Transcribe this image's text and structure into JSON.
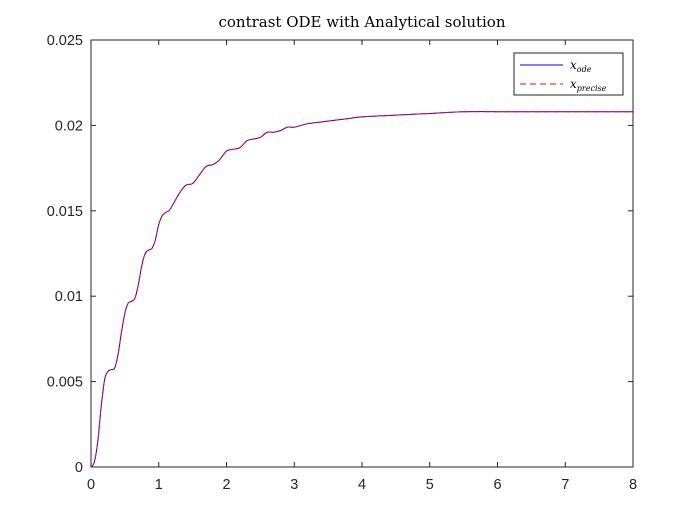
{
  "chart_data": {
    "type": "line",
    "title": "contrast ODE with Analytical solution",
    "xlabel": "",
    "ylabel": "",
    "xlim": [
      0,
      8
    ],
    "ylim": [
      0,
      0.025
    ],
    "xticks": [
      "0",
      "1",
      "2",
      "3",
      "4",
      "5",
      "6",
      "7",
      "8"
    ],
    "yticks": [
      "0",
      "0.005",
      "0.01",
      "0.015",
      "0.02",
      "0.025"
    ],
    "grid": false,
    "legend_position": "top-right",
    "series": [
      {
        "name": "x_ode",
        "legend_base": "x",
        "legend_sub": "ode",
        "color": "#0000ff",
        "style": "solid",
        "x": [
          0,
          0.05,
          0.1,
          0.15,
          0.2,
          0.25,
          0.3,
          0.35,
          0.4,
          0.45,
          0.5,
          0.55,
          0.6,
          0.65,
          0.7,
          0.75,
          0.8,
          0.85,
          0.9,
          0.95,
          1.0,
          1.05,
          1.1,
          1.15,
          1.2,
          1.3,
          1.4,
          1.5,
          1.6,
          1.7,
          1.8,
          1.9,
          2.0,
          2.1,
          2.2,
          2.3,
          2.4,
          2.5,
          2.6,
          2.7,
          2.8,
          2.9,
          3.0,
          3.2,
          3.4,
          3.6,
          3.8,
          4.0,
          4.5,
          5.0,
          5.5,
          6.0,
          6.5,
          7.0,
          7.5,
          8.0
        ],
        "values": [
          0,
          0.0003,
          0.0015,
          0.0035,
          0.0051,
          0.0056,
          0.0057,
          0.0058,
          0.0066,
          0.0079,
          0.009,
          0.0096,
          0.0097,
          0.0099,
          0.0107,
          0.0118,
          0.0125,
          0.0127,
          0.0128,
          0.0133,
          0.0142,
          0.0147,
          0.0149,
          0.015,
          0.0153,
          0.016,
          0.0165,
          0.0166,
          0.0171,
          0.0176,
          0.0177,
          0.018,
          0.0185,
          0.0186,
          0.0187,
          0.0191,
          0.0192,
          0.0193,
          0.0196,
          0.0196,
          0.0197,
          0.0199,
          0.0199,
          0.0201,
          0.0202,
          0.0203,
          0.0204,
          0.0205,
          0.0206,
          0.0207,
          0.0208,
          0.0208,
          0.0208,
          0.0208,
          0.0208,
          0.0208
        ]
      },
      {
        "name": "x_precise",
        "legend_base": "x",
        "legend_sub": "precise",
        "color": "#ff0000",
        "style": "dashed",
        "x": [
          0,
          0.05,
          0.1,
          0.15,
          0.2,
          0.25,
          0.3,
          0.35,
          0.4,
          0.45,
          0.5,
          0.55,
          0.6,
          0.65,
          0.7,
          0.75,
          0.8,
          0.85,
          0.9,
          0.95,
          1.0,
          1.05,
          1.1,
          1.15,
          1.2,
          1.3,
          1.4,
          1.5,
          1.6,
          1.7,
          1.8,
          1.9,
          2.0,
          2.1,
          2.2,
          2.3,
          2.4,
          2.5,
          2.6,
          2.7,
          2.8,
          2.9,
          3.0,
          3.2,
          3.4,
          3.6,
          3.8,
          4.0,
          4.5,
          5.0,
          5.5,
          6.0,
          6.5,
          7.0,
          7.5,
          8.0
        ],
        "values": [
          0,
          0.0003,
          0.0015,
          0.0035,
          0.0051,
          0.0056,
          0.0057,
          0.0058,
          0.0066,
          0.0079,
          0.009,
          0.0096,
          0.0097,
          0.0099,
          0.0107,
          0.0118,
          0.0125,
          0.0127,
          0.0128,
          0.0133,
          0.0142,
          0.0147,
          0.0149,
          0.015,
          0.0153,
          0.016,
          0.0165,
          0.0166,
          0.0171,
          0.0176,
          0.0177,
          0.018,
          0.0185,
          0.0186,
          0.0187,
          0.0191,
          0.0192,
          0.0193,
          0.0196,
          0.0196,
          0.0197,
          0.0199,
          0.0199,
          0.0201,
          0.0202,
          0.0203,
          0.0204,
          0.0205,
          0.0206,
          0.0207,
          0.0208,
          0.0208,
          0.0208,
          0.0208,
          0.0208,
          0.0208
        ]
      }
    ]
  }
}
